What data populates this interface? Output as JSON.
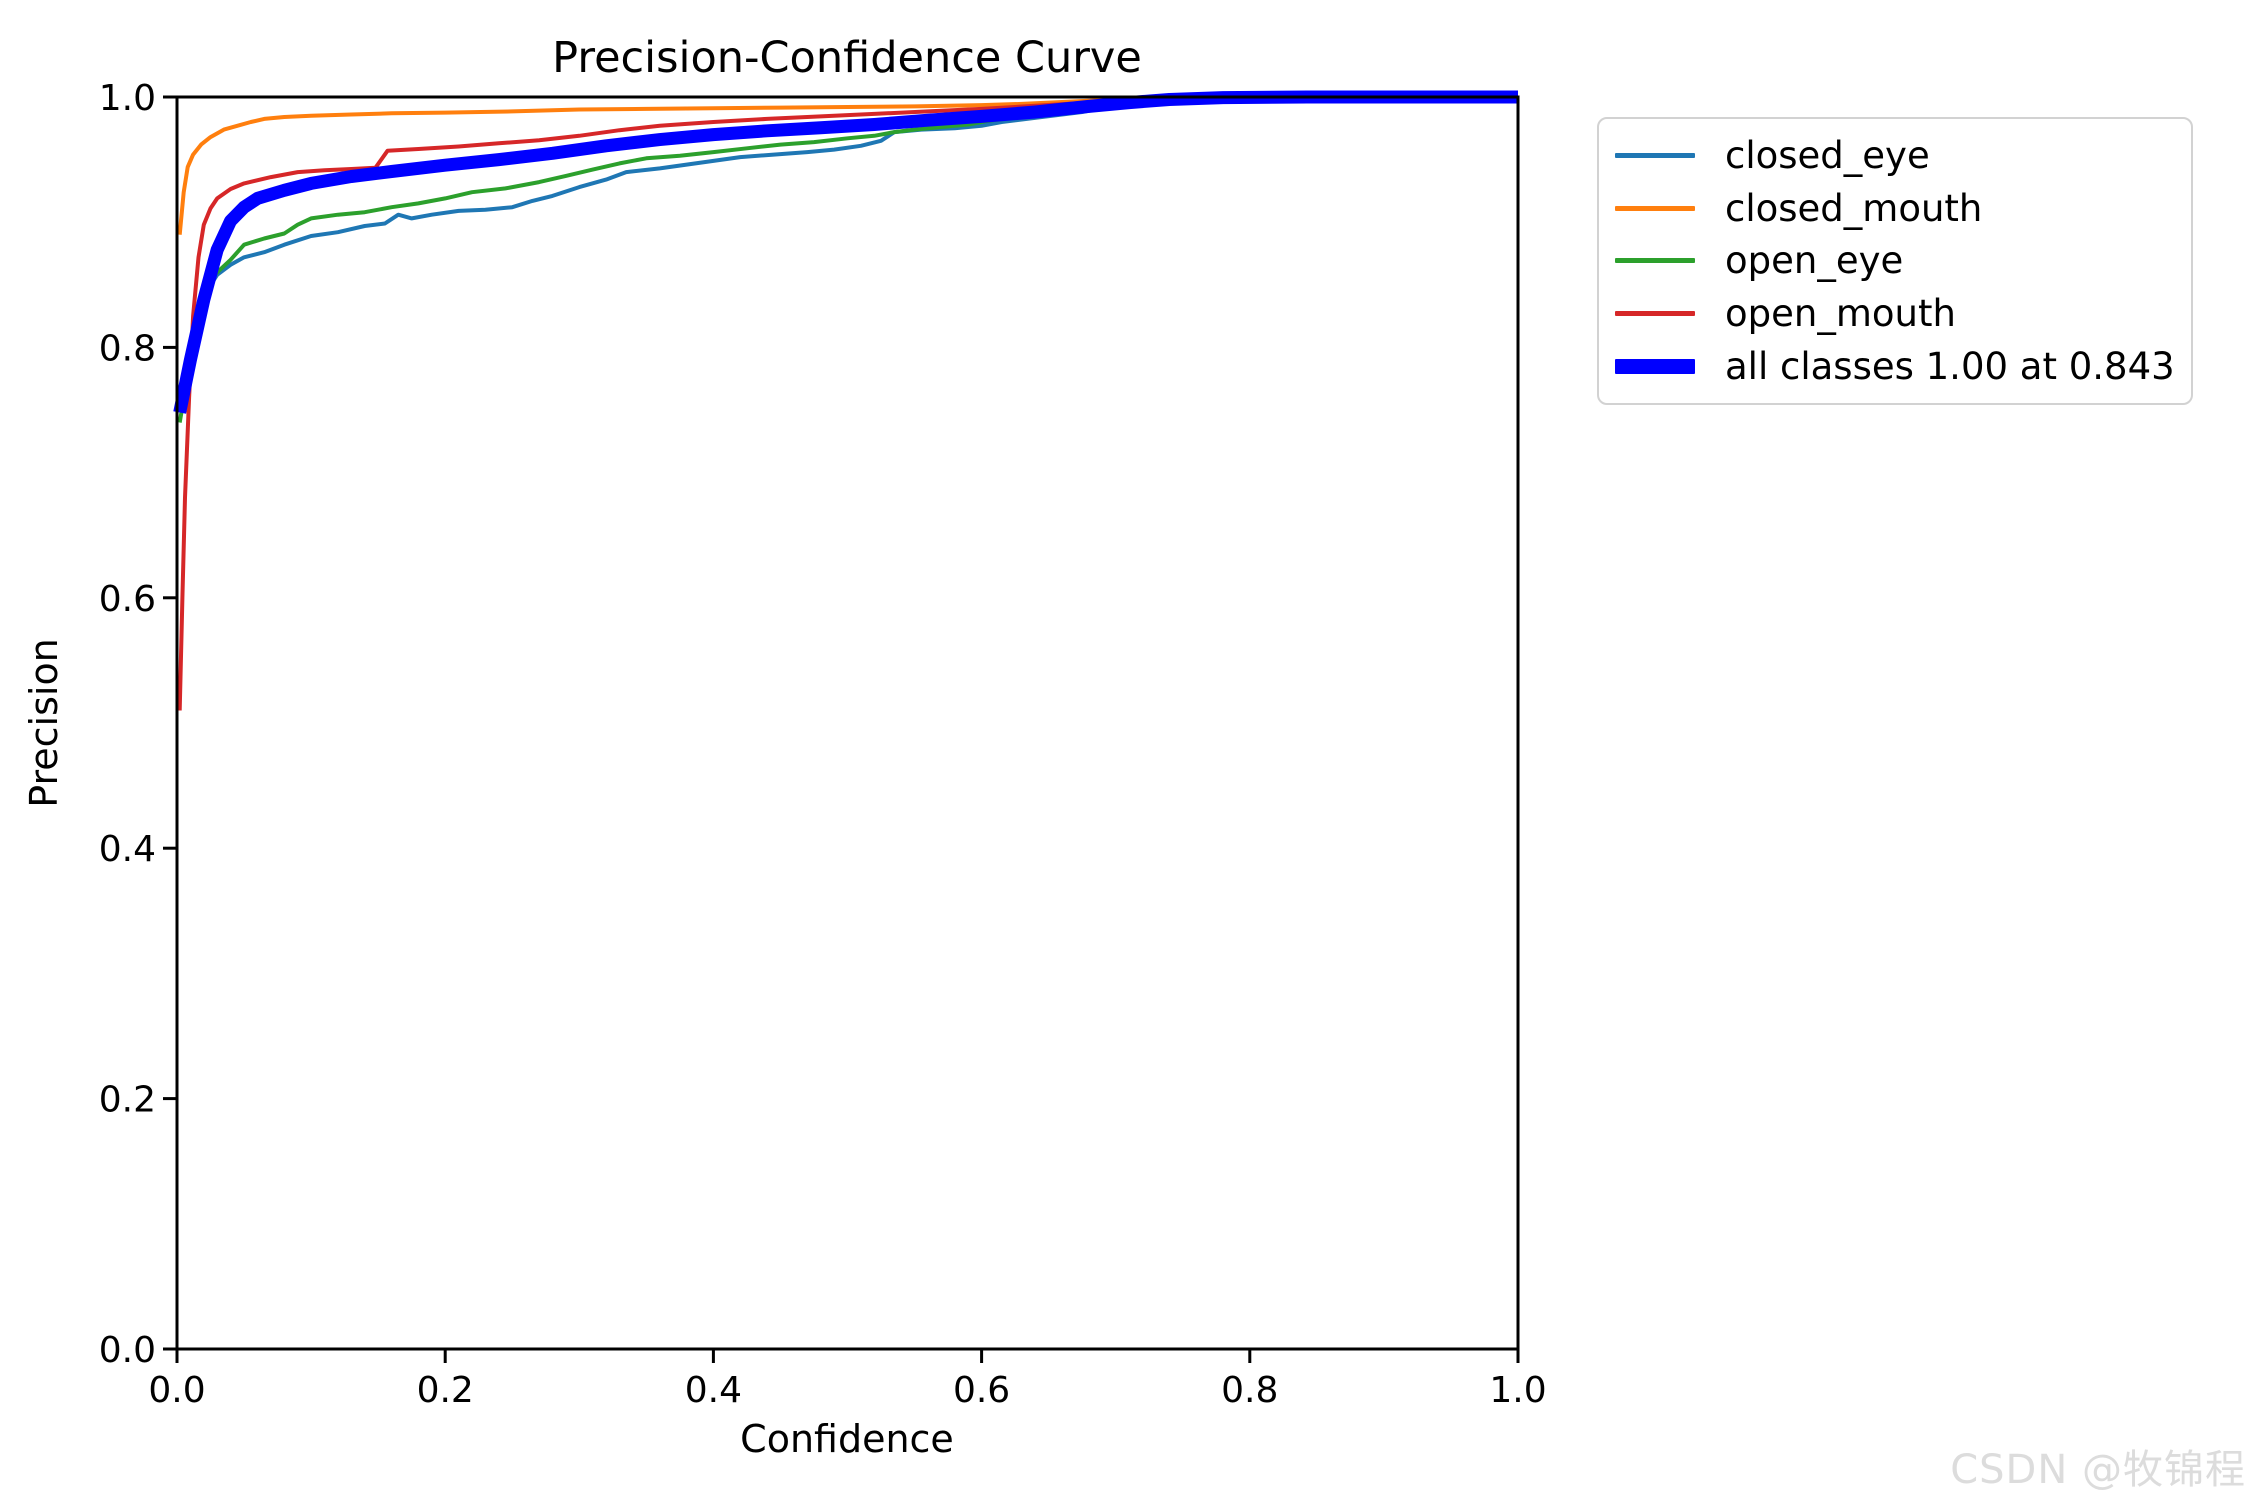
{
  "page": {
    "watermark": "CSDN @牧锦程",
    "background_color": "#ffffff"
  },
  "chart_data": {
    "type": "line",
    "title": "Precision-Confidence Curve",
    "xlabel": "Confidence",
    "ylabel": "Precision",
    "xlim": [
      0.0,
      1.0
    ],
    "ylim": [
      0.0,
      1.0
    ],
    "grid": false,
    "legend_position": "outside-upper-right",
    "axes_color": "#000000",
    "x_tick_values": [
      0.0,
      0.2,
      0.4,
      0.6,
      0.8,
      1.0
    ],
    "x_ticks": [
      "0.0",
      "0.2",
      "0.4",
      "0.6",
      "0.8",
      "1.0"
    ],
    "y_tick_values": [
      0.0,
      0.2,
      0.4,
      0.6,
      0.8,
      1.0
    ],
    "y_ticks": [
      "0.0",
      "0.2",
      "0.4",
      "0.6",
      "0.8",
      "1.0"
    ],
    "series": [
      {
        "label": "closed_eye",
        "color": "#1f77b4",
        "width": 4,
        "points": [
          [
            0.002,
            0.75
          ],
          [
            0.008,
            0.775
          ],
          [
            0.015,
            0.815
          ],
          [
            0.022,
            0.845
          ],
          [
            0.03,
            0.858
          ],
          [
            0.04,
            0.866
          ],
          [
            0.05,
            0.872
          ],
          [
            0.065,
            0.876
          ],
          [
            0.08,
            0.882
          ],
          [
            0.1,
            0.889
          ],
          [
            0.12,
            0.892
          ],
          [
            0.14,
            0.897
          ],
          [
            0.155,
            0.899
          ],
          [
            0.165,
            0.906
          ],
          [
            0.175,
            0.903
          ],
          [
            0.19,
            0.906
          ],
          [
            0.21,
            0.909
          ],
          [
            0.23,
            0.91
          ],
          [
            0.25,
            0.912
          ],
          [
            0.265,
            0.917
          ],
          [
            0.28,
            0.921
          ],
          [
            0.3,
            0.928
          ],
          [
            0.32,
            0.934
          ],
          [
            0.335,
            0.94
          ],
          [
            0.36,
            0.943
          ],
          [
            0.38,
            0.946
          ],
          [
            0.4,
            0.949
          ],
          [
            0.42,
            0.952
          ],
          [
            0.445,
            0.954
          ],
          [
            0.47,
            0.956
          ],
          [
            0.49,
            0.958
          ],
          [
            0.51,
            0.961
          ],
          [
            0.525,
            0.965
          ],
          [
            0.535,
            0.972
          ],
          [
            0.555,
            0.974
          ],
          [
            0.58,
            0.975
          ],
          [
            0.6,
            0.977
          ],
          [
            0.615,
            0.98
          ],
          [
            0.63,
            0.982
          ],
          [
            0.645,
            0.984
          ],
          [
            0.66,
            0.986
          ],
          [
            0.675,
            0.988
          ],
          [
            0.69,
            0.991
          ],
          [
            0.705,
            0.994
          ],
          [
            0.72,
            0.998
          ],
          [
            0.73,
            1.0
          ]
        ]
      },
      {
        "label": "closed_mouth",
        "color": "#ff7f0e",
        "width": 4,
        "points": [
          [
            0.002,
            0.89
          ],
          [
            0.005,
            0.924
          ],
          [
            0.008,
            0.944
          ],
          [
            0.012,
            0.954
          ],
          [
            0.018,
            0.962
          ],
          [
            0.025,
            0.968
          ],
          [
            0.035,
            0.974
          ],
          [
            0.045,
            0.977
          ],
          [
            0.055,
            0.98
          ],
          [
            0.065,
            0.9825
          ],
          [
            0.08,
            0.984
          ],
          [
            0.1,
            0.985
          ],
          [
            0.13,
            0.986
          ],
          [
            0.16,
            0.987
          ],
          [
            0.2,
            0.9875
          ],
          [
            0.25,
            0.9885
          ],
          [
            0.3,
            0.99
          ],
          [
            0.35,
            0.9905
          ],
          [
            0.4,
            0.991
          ],
          [
            0.45,
            0.9915
          ],
          [
            0.5,
            0.992
          ],
          [
            0.55,
            0.9925
          ],
          [
            0.6,
            0.9935
          ],
          [
            0.63,
            0.9945
          ],
          [
            0.66,
            0.996
          ],
          [
            0.69,
            0.9975
          ],
          [
            0.71,
            0.9985
          ],
          [
            0.73,
            0.999
          ],
          [
            0.75,
            0.9995
          ],
          [
            0.765,
            0.9985
          ],
          [
            0.775,
            0.9995
          ],
          [
            0.79,
            0.998
          ],
          [
            0.8,
            0.9995
          ],
          [
            0.815,
            0.999
          ]
        ]
      },
      {
        "label": "open_eye",
        "color": "#2ca02c",
        "width": 4,
        "points": [
          [
            0.002,
            0.74
          ],
          [
            0.01,
            0.79
          ],
          [
            0.018,
            0.835
          ],
          [
            0.028,
            0.858
          ],
          [
            0.04,
            0.87
          ],
          [
            0.05,
            0.882
          ],
          [
            0.065,
            0.887
          ],
          [
            0.08,
            0.891
          ],
          [
            0.09,
            0.898
          ],
          [
            0.1,
            0.903
          ],
          [
            0.12,
            0.906
          ],
          [
            0.14,
            0.908
          ],
          [
            0.16,
            0.912
          ],
          [
            0.18,
            0.915
          ],
          [
            0.2,
            0.919
          ],
          [
            0.22,
            0.924
          ],
          [
            0.245,
            0.927
          ],
          [
            0.27,
            0.932
          ],
          [
            0.29,
            0.937
          ],
          [
            0.31,
            0.942
          ],
          [
            0.33,
            0.947
          ],
          [
            0.35,
            0.951
          ],
          [
            0.375,
            0.953
          ],
          [
            0.4,
            0.956
          ],
          [
            0.425,
            0.959
          ],
          [
            0.45,
            0.962
          ],
          [
            0.475,
            0.964
          ],
          [
            0.5,
            0.967
          ],
          [
            0.52,
            0.969
          ],
          [
            0.535,
            0.972
          ],
          [
            0.55,
            0.974
          ],
          [
            0.57,
            0.976
          ],
          [
            0.59,
            0.978
          ],
          [
            0.605,
            0.981
          ],
          [
            0.62,
            0.983
          ],
          [
            0.64,
            0.985
          ],
          [
            0.655,
            0.987
          ],
          [
            0.67,
            0.988
          ],
          [
            0.685,
            0.99
          ],
          [
            0.7,
            0.992
          ],
          [
            0.715,
            0.996
          ],
          [
            0.725,
            1.0
          ]
        ]
      },
      {
        "label": "open_mouth",
        "color": "#d62728",
        "width": 4,
        "points": [
          [
            0.002,
            0.51
          ],
          [
            0.004,
            0.6
          ],
          [
            0.006,
            0.68
          ],
          [
            0.009,
            0.76
          ],
          [
            0.012,
            0.825
          ],
          [
            0.016,
            0.872
          ],
          [
            0.02,
            0.898
          ],
          [
            0.025,
            0.911
          ],
          [
            0.03,
            0.919
          ],
          [
            0.04,
            0.9265
          ],
          [
            0.05,
            0.931
          ],
          [
            0.07,
            0.936
          ],
          [
            0.09,
            0.94
          ],
          [
            0.11,
            0.9415
          ],
          [
            0.13,
            0.9425
          ],
          [
            0.148,
            0.9435
          ],
          [
            0.157,
            0.957
          ],
          [
            0.18,
            0.9585
          ],
          [
            0.21,
            0.9605
          ],
          [
            0.24,
            0.963
          ],
          [
            0.27,
            0.9655
          ],
          [
            0.3,
            0.969
          ],
          [
            0.33,
            0.9735
          ],
          [
            0.36,
            0.977
          ],
          [
            0.4,
            0.98
          ],
          [
            0.44,
            0.9825
          ],
          [
            0.48,
            0.9845
          ],
          [
            0.52,
            0.9865
          ],
          [
            0.56,
            0.9885
          ],
          [
            0.6,
            0.9905
          ],
          [
            0.64,
            0.993
          ],
          [
            0.68,
            0.9955
          ],
          [
            0.71,
            0.9975
          ],
          [
            0.74,
            0.999
          ],
          [
            0.77,
            0.9995
          ],
          [
            0.81,
            1.0
          ]
        ]
      },
      {
        "label": "all classes 1.00 at 0.843",
        "color": "#0000ff",
        "width": 13,
        "points": [
          [
            0.002,
            0.748
          ],
          [
            0.01,
            0.79
          ],
          [
            0.02,
            0.838
          ],
          [
            0.03,
            0.878
          ],
          [
            0.04,
            0.901
          ],
          [
            0.05,
            0.912
          ],
          [
            0.06,
            0.919
          ],
          [
            0.08,
            0.9255
          ],
          [
            0.1,
            0.931
          ],
          [
            0.13,
            0.9365
          ],
          [
            0.16,
            0.9405
          ],
          [
            0.2,
            0.9455
          ],
          [
            0.24,
            0.95
          ],
          [
            0.28,
            0.955
          ],
          [
            0.32,
            0.961
          ],
          [
            0.36,
            0.966
          ],
          [
            0.4,
            0.97
          ],
          [
            0.44,
            0.973
          ],
          [
            0.48,
            0.9755
          ],
          [
            0.52,
            0.978
          ],
          [
            0.56,
            0.9815
          ],
          [
            0.6,
            0.9845
          ],
          [
            0.64,
            0.988
          ],
          [
            0.68,
            0.9925
          ],
          [
            0.71,
            0.9955
          ],
          [
            0.74,
            0.998
          ],
          [
            0.78,
            0.9995
          ],
          [
            0.843,
            1.0
          ],
          [
            1.0,
            1.0
          ]
        ]
      }
    ]
  }
}
